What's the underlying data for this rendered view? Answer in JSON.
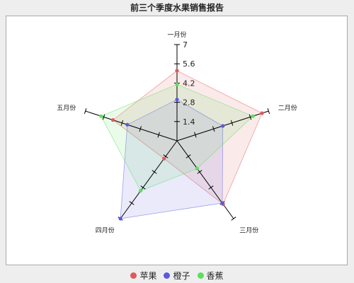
{
  "chart_data": {
    "type": "radar",
    "title": "前三个季度水果销售报告",
    "axes": [
      "一月份",
      "二月份",
      "三月份",
      "四月份",
      "五月份"
    ],
    "rmax": 7,
    "ticks": [
      1.4,
      2.8,
      4.2,
      5.6,
      7
    ],
    "tick_labels": [
      "1.4",
      "2.8",
      "4.2",
      "5.6",
      "7"
    ],
    "grid": false,
    "legend_position": "bottom",
    "series": [
      {
        "name": "苹果",
        "color": "#e05a5a",
        "values": [
          5.1,
          6.5,
          5.7,
          1.6,
          4.9
        ]
      },
      {
        "name": "橙子",
        "color": "#5a5ae0",
        "values": [
          3.0,
          3.5,
          5.6,
          7.0,
          3.8
        ]
      },
      {
        "name": "香蕉",
        "color": "#5ae05a",
        "values": [
          4.1,
          5.8,
          2.5,
          4.5,
          5.8
        ]
      }
    ]
  }
}
